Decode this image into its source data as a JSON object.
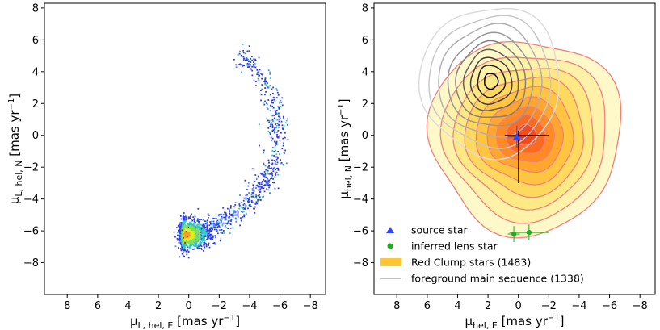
{
  "chart_data": [
    {
      "type": "scatter",
      "xlabel": "μL, hel, E [mas yr−1]",
      "ylabel": "μL, hel, N [mas yr−1]",
      "xlabel_parts": {
        "sym": "μ",
        "sub": "L, hel, E",
        "unit_open": " [mas yr",
        "unit_exp": "−1",
        "unit_close": "]"
      },
      "ylabel_parts": {
        "sym": "μ",
        "sub": "L, hel, N",
        "unit_open": " [mas yr",
        "unit_exp": "−1",
        "unit_close": "]"
      },
      "xlim": [
        9.5,
        -9.0
      ],
      "ylim": [
        -10.0,
        8.3
      ],
      "xticks": [
        8,
        6,
        4,
        2,
        0,
        -2,
        -4,
        -6,
        -8
      ],
      "yticks": [
        8,
        6,
        4,
        2,
        0,
        -2,
        -4,
        -6,
        -8
      ],
      "xtick_labels": [
        "8",
        "6",
        "4",
        "2",
        "0",
        "−2",
        "−4",
        "−6",
        "−8"
      ],
      "ytick_labels": [
        "8",
        "6",
        "4",
        "2",
        "0",
        "−2",
        "−4",
        "−6",
        "−8"
      ],
      "grid": false,
      "density_core": {
        "x": 0.3,
        "y": -6.2
      },
      "arc_path": [
        {
          "x": 0.3,
          "y": -6.3
        },
        {
          "x": -1.0,
          "y": -6.0
        },
        {
          "x": -2.5,
          "y": -5.2
        },
        {
          "x": -3.8,
          "y": -4.3
        },
        {
          "x": -4.8,
          "y": -3.2
        },
        {
          "x": -5.6,
          "y": -1.7
        },
        {
          "x": -5.8,
          "y": 0.0
        },
        {
          "x": -5.6,
          "y": 1.6
        },
        {
          "x": -5.0,
          "y": 3.2
        },
        {
          "x": -4.0,
          "y": 4.6
        },
        {
          "x": -3.3,
          "y": 5.1
        }
      ],
      "colors": [
        "#2f3de0",
        "#3e8fe8",
        "#33c8c8",
        "#78e05a",
        "#d8f020",
        "#f2a21e",
        "#e03030"
      ]
    },
    {
      "type": "contour",
      "xlabel": "μhel, E [mas yr−1]",
      "ylabel": "μhel, N [mas yr−1]",
      "xlabel_parts": {
        "sym": "μ",
        "sub": "hel, E",
        "unit_open": " [mas yr",
        "unit_exp": "−1",
        "unit_close": "]"
      },
      "ylabel_parts": {
        "sym": "μ",
        "sub": "hel, N",
        "unit_open": " [mas yr",
        "unit_exp": "−1",
        "unit_close": "]"
      },
      "xlim": [
        9.5,
        -9.0
      ],
      "ylim": [
        -10.0,
        8.3
      ],
      "xticks": [
        8,
        6,
        4,
        2,
        0,
        -2,
        -4,
        -6,
        -8
      ],
      "yticks": [
        8,
        6,
        4,
        2,
        0,
        -2,
        -4,
        -6,
        -8
      ],
      "xtick_labels": [
        "8",
        "6",
        "4",
        "2",
        "0",
        "−2",
        "−4",
        "−6",
        "−8"
      ],
      "ytick_labels": [
        "8",
        "6",
        "4",
        "2",
        "0",
        "−2",
        "−4",
        "−6",
        "−8"
      ],
      "grid": false,
      "red_clump": {
        "center": {
          "x": -0.5,
          "y": 0.0
        },
        "levels": [
          {
            "rx": 6.3,
            "ry": 6.1,
            "fill": "#fff8c8"
          },
          {
            "rx": 5.4,
            "ry": 5.2,
            "fill": "#fff2a8"
          },
          {
            "rx": 4.6,
            "ry": 4.4,
            "fill": "#ffe984"
          },
          {
            "rx": 3.9,
            "ry": 3.7,
            "fill": "#ffd95e"
          },
          {
            "rx": 3.2,
            "ry": 3.0,
            "fill": "#ffc540"
          },
          {
            "rx": 2.5,
            "ry": 2.3,
            "fill": "#ffa62e"
          },
          {
            "rx": 1.9,
            "ry": 1.7,
            "fill": "#ff8a24"
          },
          {
            "rx": 1.3,
            "ry": 1.2,
            "fill": "#fb6a1e"
          },
          {
            "rx": 0.7,
            "ry": 0.65,
            "fill": "#f24a1a"
          }
        ],
        "line_color": "#f08080"
      },
      "main_sequence": {
        "center": {
          "x": 1.8,
          "y": 3.4
        },
        "levels": [
          {
            "rx": 4.6,
            "ry": 4.7,
            "stroke": "#dcdcdc"
          },
          {
            "rx": 4.0,
            "ry": 4.1,
            "stroke": "#c8c8c8"
          },
          {
            "rx": 3.4,
            "ry": 3.5,
            "stroke": "#b0b0b0"
          },
          {
            "rx": 2.8,
            "ry": 2.9,
            "stroke": "#989898"
          },
          {
            "rx": 2.3,
            "ry": 2.4,
            "stroke": "#808080"
          },
          {
            "rx": 1.8,
            "ry": 1.9,
            "stroke": "#606060"
          },
          {
            "rx": 1.35,
            "ry": 1.45,
            "stroke": "#404040"
          },
          {
            "rx": 0.9,
            "ry": 1.0,
            "stroke": "#202020"
          },
          {
            "rx": 0.45,
            "ry": 0.5,
            "stroke": "#000000"
          }
        ]
      },
      "source_star": {
        "x": 0.1,
        "y": -0.1,
        "xerr": 0.6,
        "yerr": 0.7,
        "color": "#3344ff"
      },
      "source_cross": {
        "x": 0.0,
        "y": 0.0,
        "xerr_left": 0.9,
        "xerr_right": 2.0,
        "yerr_up": 0.3,
        "yerr_down": 3.0
      },
      "lens_points": [
        {
          "x": 0.3,
          "y": -6.2,
          "xerr": 0.4,
          "yerr": 0.5
        },
        {
          "x": -0.7,
          "y": -6.1,
          "xerr": 1.3,
          "yerr": 0.5
        }
      ],
      "lens_color": "#22aa22",
      "legend": {
        "placement": "bottom-left",
        "entries": [
          {
            "label": "source star",
            "kind": "triangle",
            "color": "#3344ff"
          },
          {
            "label": "inferred lens star",
            "kind": "dot",
            "color": "#22aa22"
          },
          {
            "label": "Red Clump stars (1483)",
            "kind": "patch",
            "color": "#ffc533"
          },
          {
            "label": "foreground main sequence (1338)",
            "kind": "line",
            "color": "#aaaaaa"
          }
        ]
      }
    }
  ]
}
